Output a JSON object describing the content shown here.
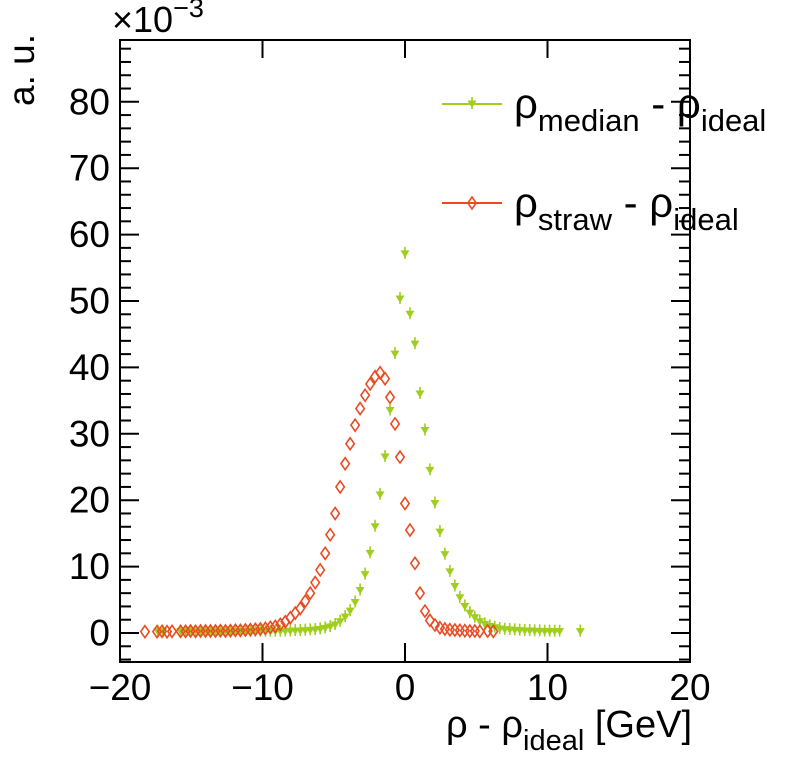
{
  "chart_data": {
    "type": "scatter",
    "title": "",
    "ylabel": "a. u.",
    "y_exponent": {
      "mantissa": "×10",
      "exponent": "−3"
    },
    "xlabel_parts": {
      "pre": "ρ - ρ",
      "sub": "ideal",
      "post": " [GeV]"
    },
    "xlim": [
      -20,
      20
    ],
    "ylim_units_1e3": [
      -4.4,
      89.3
    ],
    "x_ticks": [
      -20,
      -10,
      0,
      10,
      20
    ],
    "x_tick_labels": [
      "−20",
      "−10",
      "0",
      "10",
      "20"
    ],
    "y_ticks": [
      0,
      10,
      20,
      30,
      40,
      50,
      60,
      70,
      80
    ],
    "y_tick_labels": [
      "0",
      "10",
      "20",
      "30",
      "40",
      "50",
      "60",
      "70",
      "80"
    ],
    "y_minor_step": 2,
    "grid": false,
    "legend_position": "top-right",
    "colors": {
      "median": "#9fce1e",
      "straw": "#ea4b22",
      "axis": "#000000"
    },
    "legend": [
      {
        "series": "median",
        "marker": "triangle-down-filled",
        "label_main1": "ρ",
        "label_sub1": "median",
        "label_main2": " - ρ",
        "label_sub2": "ideal"
      },
      {
        "series": "straw",
        "marker": "diamond-open",
        "label_main1": "ρ",
        "label_sub1": "straw",
        "label_main2": " - ρ",
        "label_sub2": "ideal"
      }
    ],
    "series": [
      {
        "name": "rho_median_minus_rho_ideal",
        "marker": "triangle-down-filled",
        "color": "#9fce1e",
        "points": [
          [
            -17.35,
            0.2
          ],
          [
            -17.0,
            0.2
          ],
          [
            -15.75,
            0.2
          ],
          [
            -15.4,
            0.2
          ],
          [
            -15.05,
            0.2
          ],
          [
            -14.7,
            0.2
          ],
          [
            -14.35,
            0.2
          ],
          [
            -14.0,
            0.2
          ],
          [
            -13.65,
            0.2
          ],
          [
            -13.3,
            0.2
          ],
          [
            -12.95,
            0.2
          ],
          [
            -12.6,
            0.2
          ],
          [
            -12.25,
            0.2
          ],
          [
            -11.9,
            0.2
          ],
          [
            -11.55,
            0.2
          ],
          [
            -11.2,
            0.2
          ],
          [
            -10.85,
            0.2
          ],
          [
            -10.5,
            0.2
          ],
          [
            -10.15,
            0.2
          ],
          [
            -9.8,
            0.2
          ],
          [
            -9.45,
            0.2
          ],
          [
            -9.1,
            0.2
          ],
          [
            -8.75,
            0.2
          ],
          [
            -8.4,
            0.25
          ],
          [
            -8.05,
            0.25
          ],
          [
            -7.7,
            0.3
          ],
          [
            -7.35,
            0.3
          ],
          [
            -7.0,
            0.35
          ],
          [
            -6.65,
            0.4
          ],
          [
            -6.3,
            0.45
          ],
          [
            -5.95,
            0.55
          ],
          [
            -5.6,
            0.7
          ],
          [
            -5.25,
            0.9
          ],
          [
            -4.9,
            1.2
          ],
          [
            -4.55,
            1.7
          ],
          [
            -4.2,
            2.4
          ],
          [
            -3.85,
            3.3
          ],
          [
            -3.5,
            4.6
          ],
          [
            -3.15,
            6.4
          ],
          [
            -2.8,
            8.8
          ],
          [
            -2.45,
            12.0
          ],
          [
            -2.1,
            16.0
          ],
          [
            -1.75,
            20.8
          ],
          [
            -1.4,
            26.5
          ],
          [
            -1.05,
            33.5
          ],
          [
            -0.7,
            42.0
          ],
          [
            -0.35,
            50.3
          ],
          [
            0.0,
            57.1
          ],
          [
            0.35,
            48.0
          ],
          [
            0.7,
            43.5
          ],
          [
            1.05,
            36.0
          ],
          [
            1.4,
            30.5
          ],
          [
            1.75,
            24.5
          ],
          [
            2.1,
            19.5
          ],
          [
            2.45,
            15.2
          ],
          [
            2.8,
            11.8
          ],
          [
            3.15,
            9.2
          ],
          [
            3.5,
            7.0
          ],
          [
            3.85,
            5.3
          ],
          [
            4.2,
            4.0
          ],
          [
            4.55,
            3.0
          ],
          [
            4.9,
            2.3
          ],
          [
            5.25,
            1.7
          ],
          [
            5.6,
            1.3
          ],
          [
            5.95,
            1.0
          ],
          [
            6.3,
            0.8
          ],
          [
            6.65,
            0.6
          ],
          [
            7.0,
            0.5
          ],
          [
            7.35,
            0.45
          ],
          [
            7.7,
            0.4
          ],
          [
            8.05,
            0.35
          ],
          [
            8.4,
            0.3
          ],
          [
            8.75,
            0.3
          ],
          [
            9.1,
            0.25
          ],
          [
            9.45,
            0.25
          ],
          [
            9.8,
            0.2
          ],
          [
            10.15,
            0.2
          ],
          [
            10.5,
            0.2
          ],
          [
            10.85,
            0.2
          ],
          [
            12.3,
            0.2
          ]
        ]
      },
      {
        "name": "rho_straw_minus_rho_ideal",
        "marker": "diamond-open",
        "color": "#ea4b22",
        "points": [
          [
            -18.25,
            0.2
          ],
          [
            -17.4,
            0.2
          ],
          [
            -17.05,
            0.25
          ],
          [
            -16.7,
            0.2
          ],
          [
            -16.35,
            0.25
          ],
          [
            -15.75,
            0.25
          ],
          [
            -15.4,
            0.25
          ],
          [
            -15.05,
            0.3
          ],
          [
            -14.7,
            0.25
          ],
          [
            -14.35,
            0.3
          ],
          [
            -14.0,
            0.3
          ],
          [
            -13.65,
            0.3
          ],
          [
            -13.3,
            0.3
          ],
          [
            -12.95,
            0.35
          ],
          [
            -12.6,
            0.3
          ],
          [
            -12.25,
            0.35
          ],
          [
            -11.9,
            0.4
          ],
          [
            -11.55,
            0.4
          ],
          [
            -11.2,
            0.45
          ],
          [
            -10.85,
            0.5
          ],
          [
            -10.5,
            0.55
          ],
          [
            -10.15,
            0.6
          ],
          [
            -9.8,
            0.7
          ],
          [
            -9.45,
            0.85
          ],
          [
            -9.1,
            1.0
          ],
          [
            -8.75,
            1.3
          ],
          [
            -8.4,
            1.7
          ],
          [
            -8.05,
            2.3
          ],
          [
            -7.7,
            3.0
          ],
          [
            -7.35,
            3.7
          ],
          [
            -7.0,
            4.8
          ],
          [
            -6.65,
            6.0
          ],
          [
            -6.3,
            7.6
          ],
          [
            -5.95,
            9.5
          ],
          [
            -5.6,
            12.0
          ],
          [
            -5.25,
            14.8
          ],
          [
            -4.9,
            18.0
          ],
          [
            -4.55,
            22.0
          ],
          [
            -4.2,
            25.5
          ],
          [
            -3.85,
            28.5
          ],
          [
            -3.5,
            31.3
          ],
          [
            -3.15,
            33.8
          ],
          [
            -2.8,
            35.8
          ],
          [
            -2.45,
            37.5
          ],
          [
            -2.1,
            38.6
          ],
          [
            -1.75,
            39.2
          ],
          [
            -1.4,
            38.3
          ],
          [
            -1.05,
            35.5
          ],
          [
            -0.7,
            31.5
          ],
          [
            -0.35,
            26.5
          ],
          [
            0.0,
            19.5
          ],
          [
            0.35,
            15.5
          ],
          [
            0.7,
            10.5
          ],
          [
            1.05,
            6.0
          ],
          [
            1.4,
            3.3
          ],
          [
            1.75,
            1.9
          ],
          [
            2.1,
            1.2
          ],
          [
            2.45,
            0.8
          ],
          [
            2.8,
            0.6
          ],
          [
            3.15,
            0.5
          ],
          [
            3.5,
            0.45
          ],
          [
            3.85,
            0.4
          ],
          [
            4.2,
            0.35
          ],
          [
            4.55,
            0.3
          ],
          [
            4.9,
            0.3
          ],
          [
            5.25,
            0.25
          ],
          [
            5.8,
            0.3
          ],
          [
            6.2,
            0.25
          ]
        ]
      }
    ]
  }
}
